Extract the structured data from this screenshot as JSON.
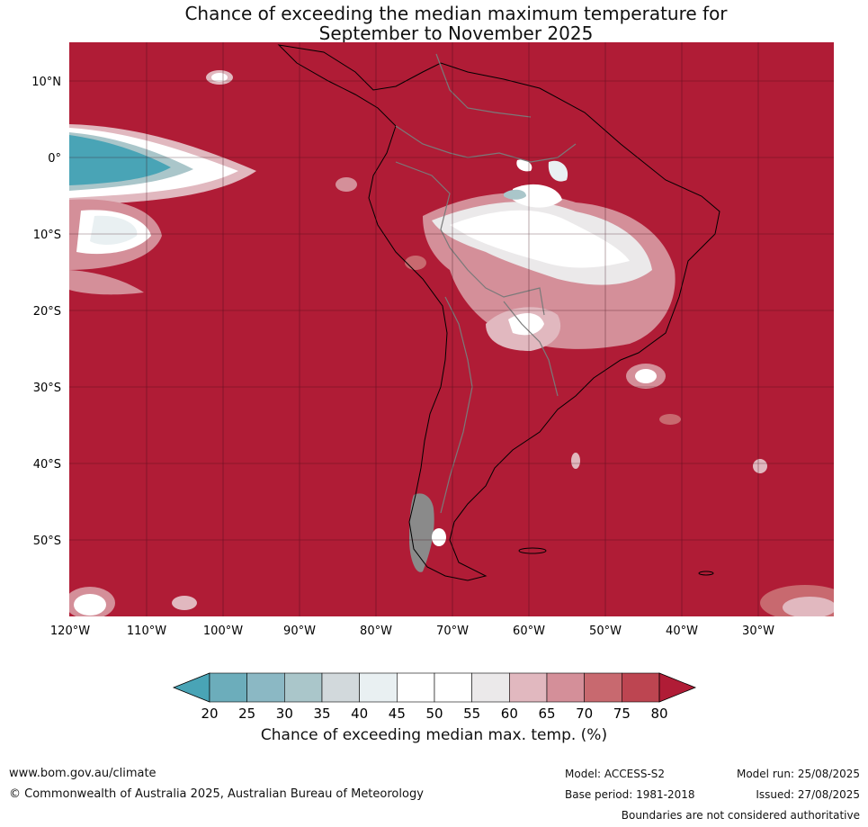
{
  "title_line1": "Chance of exceeding the median maximum temperature for",
  "title_line2": "September to November 2025",
  "lat_ticks": [
    "10°N",
    "0°",
    "10°S",
    "20°S",
    "30°S",
    "40°S",
    "50°S"
  ],
  "lon_ticks": [
    "120°W",
    "110°W",
    "100°W",
    "90°W",
    "80°W",
    "70°W",
    "60°W",
    "50°W",
    "40°W",
    "30°W"
  ],
  "colorbar": {
    "ticks": [
      "20",
      "25",
      "30",
      "35",
      "40",
      "45",
      "50",
      "55",
      "60",
      "65",
      "70",
      "75",
      "80"
    ],
    "colors": [
      "#49a4b6",
      "#6cadbb",
      "#8bb8c4",
      "#aac6ca",
      "#d2d9dc",
      "#e9f0f2",
      "#ffffff",
      "#ffffff",
      "#ebe9ea",
      "#e1b8bf",
      "#d48f99",
      "#c8696f",
      "#bd4551",
      "#b01c36"
    ],
    "label": "Chance of exceeding median max. temp. (%)"
  },
  "footer": {
    "website": "www.bom.gov.au/climate",
    "copyright": "© Commonwealth of Australia 2025, Australian Bureau of Meteorology",
    "model": "Model: ACCESS-S2",
    "model_run": "Model run: 25/08/2025",
    "base_period": "Base period: 1981-2018",
    "issued": "Issued: 27/08/2025",
    "disclaimer": "Boundaries are not considered authoritative"
  }
}
